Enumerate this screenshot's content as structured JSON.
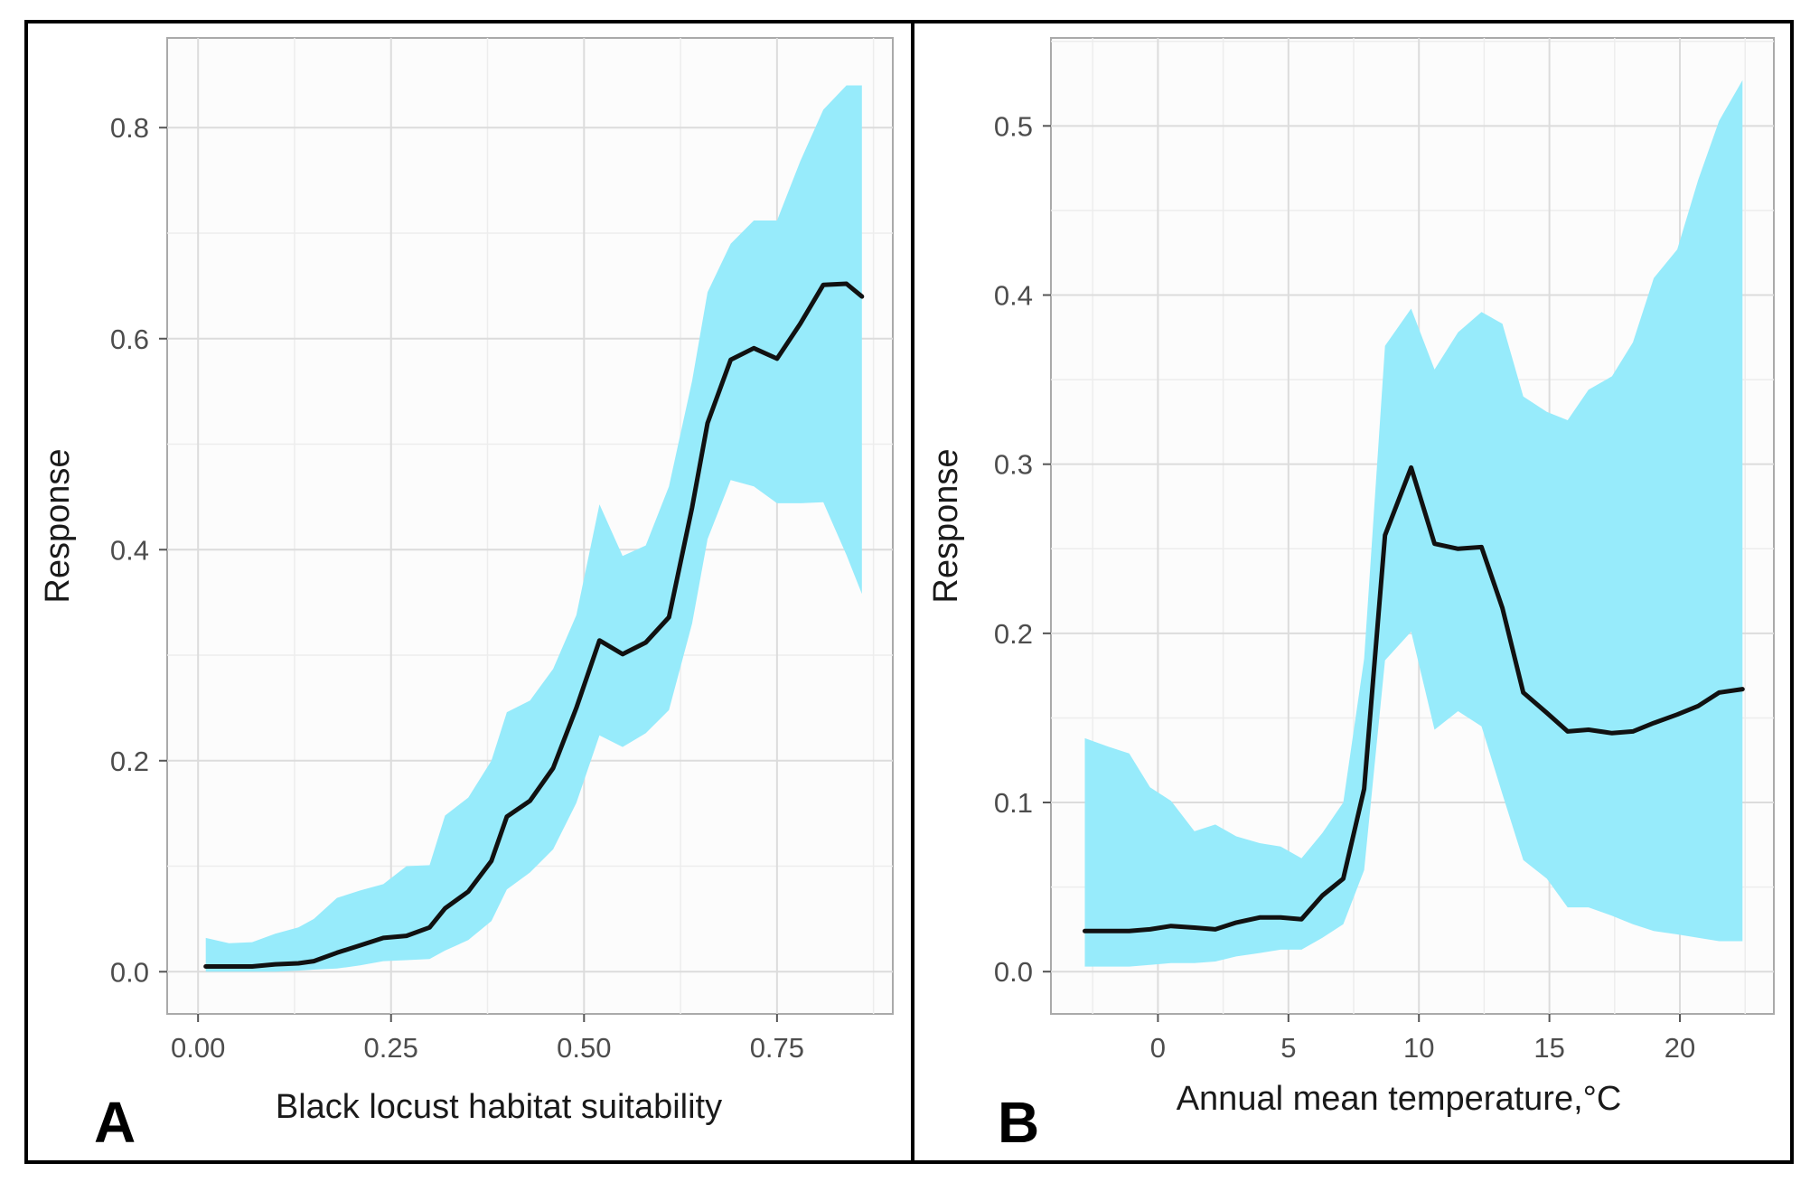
{
  "colors": {
    "band": "#97ebfb",
    "line": "#111111",
    "grid": "#dcdcdc",
    "panel_bg": "#fcfcfc"
  },
  "chart_data": [
    {
      "type": "line",
      "panel_label": "A",
      "xlabel": "Black locust habitat suitability",
      "ylabel": "Response",
      "xlim": [
        -0.04,
        0.9
      ],
      "ylim": [
        -0.04,
        0.885
      ],
      "x_ticks": [
        0.0,
        0.25,
        0.5,
        0.75
      ],
      "x_tick_labels": [
        "0.00",
        "0.25",
        "0.50",
        "0.75"
      ],
      "y_ticks": [
        0.0,
        0.2,
        0.4,
        0.6,
        0.8
      ],
      "y_tick_labels": [
        "0.0",
        "0.2",
        "0.4",
        "0.6",
        "0.8"
      ],
      "grid": true,
      "legend": "none",
      "series": [
        {
          "x": [
            0.01,
            0.04,
            0.07,
            0.1,
            0.13,
            0.15,
            0.18,
            0.21,
            0.24,
            0.27,
            0.3,
            0.32,
            0.35,
            0.38,
            0.4,
            0.43,
            0.46,
            0.49,
            0.52,
            0.55,
            0.58,
            0.61,
            0.64,
            0.66,
            0.69,
            0.72,
            0.75,
            0.78,
            0.81,
            0.84,
            0.86
          ],
          "y": [
            0.005,
            0.005,
            0.005,
            0.007,
            0.008,
            0.01,
            0.018,
            0.025,
            0.032,
            0.034,
            0.042,
            0.06,
            0.076,
            0.105,
            0.147,
            0.162,
            0.193,
            0.25,
            0.314,
            0.301,
            0.312,
            0.336,
            0.44,
            0.52,
            0.58,
            0.591,
            0.581,
            0.614,
            0.651,
            0.652,
            0.64
          ],
          "lower": [
            0.0,
            0.0,
            0.0,
            0.0,
            0.001,
            0.002,
            0.003,
            0.006,
            0.01,
            0.011,
            0.012,
            0.02,
            0.03,
            0.048,
            0.078,
            0.094,
            0.116,
            0.16,
            0.224,
            0.213,
            0.226,
            0.248,
            0.33,
            0.41,
            0.466,
            0.46,
            0.444,
            0.444,
            0.445,
            0.395,
            0.358
          ],
          "upper": [
            0.032,
            0.027,
            0.028,
            0.036,
            0.042,
            0.05,
            0.07,
            0.077,
            0.083,
            0.1,
            0.101,
            0.148,
            0.165,
            0.2,
            0.246,
            0.257,
            0.287,
            0.338,
            0.443,
            0.394,
            0.404,
            0.46,
            0.56,
            0.644,
            0.69,
            0.712,
            0.712,
            0.768,
            0.817,
            0.84,
            0.84
          ]
        }
      ]
    },
    {
      "type": "line",
      "panel_label": "B",
      "xlabel": "Annual mean temperature,°C",
      "ylabel": "Response",
      "xlim": [
        -4.1,
        23.6
      ],
      "ylim": [
        -0.025,
        0.552
      ],
      "x_ticks": [
        0,
        5,
        10,
        15,
        20
      ],
      "x_tick_labels": [
        "0",
        "5",
        "10",
        "15",
        "20"
      ],
      "y_ticks": [
        0.0,
        0.1,
        0.2,
        0.3,
        0.4,
        0.5
      ],
      "y_tick_labels": [
        "0.0",
        "0.1",
        "0.2",
        "0.3",
        "0.4",
        "0.5"
      ],
      "grid": true,
      "legend": "none",
      "series": [
        {
          "x": [
            -2.8,
            -1.9,
            -1.1,
            -0.3,
            0.5,
            1.4,
            2.2,
            3.0,
            3.9,
            4.7,
            5.5,
            6.3,
            7.1,
            7.9,
            8.7,
            9.7,
            10.6,
            11.5,
            12.4,
            13.2,
            14.0,
            14.9,
            15.7,
            16.5,
            17.4,
            18.2,
            19.0,
            19.9,
            20.7,
            21.5,
            22.4
          ],
          "y": [
            0.024,
            0.024,
            0.024,
            0.025,
            0.027,
            0.026,
            0.025,
            0.029,
            0.032,
            0.032,
            0.031,
            0.045,
            0.055,
            0.108,
            0.258,
            0.298,
            0.253,
            0.25,
            0.251,
            0.215,
            0.165,
            0.153,
            0.142,
            0.143,
            0.141,
            0.142,
            0.147,
            0.152,
            0.157,
            0.165,
            0.167
          ],
          "lower": [
            0.003,
            0.003,
            0.003,
            0.004,
            0.005,
            0.005,
            0.006,
            0.009,
            0.011,
            0.013,
            0.013,
            0.02,
            0.028,
            0.06,
            0.184,
            0.201,
            0.143,
            0.154,
            0.145,
            0.105,
            0.066,
            0.055,
            0.038,
            0.038,
            0.033,
            0.028,
            0.024,
            0.022,
            0.02,
            0.018,
            0.018
          ],
          "upper": [
            0.138,
            0.133,
            0.129,
            0.109,
            0.101,
            0.083,
            0.087,
            0.08,
            0.076,
            0.074,
            0.067,
            0.082,
            0.1,
            0.185,
            0.37,
            0.392,
            0.356,
            0.378,
            0.39,
            0.383,
            0.34,
            0.331,
            0.326,
            0.344,
            0.352,
            0.372,
            0.41,
            0.427,
            0.468,
            0.503,
            0.527
          ]
        }
      ]
    }
  ]
}
